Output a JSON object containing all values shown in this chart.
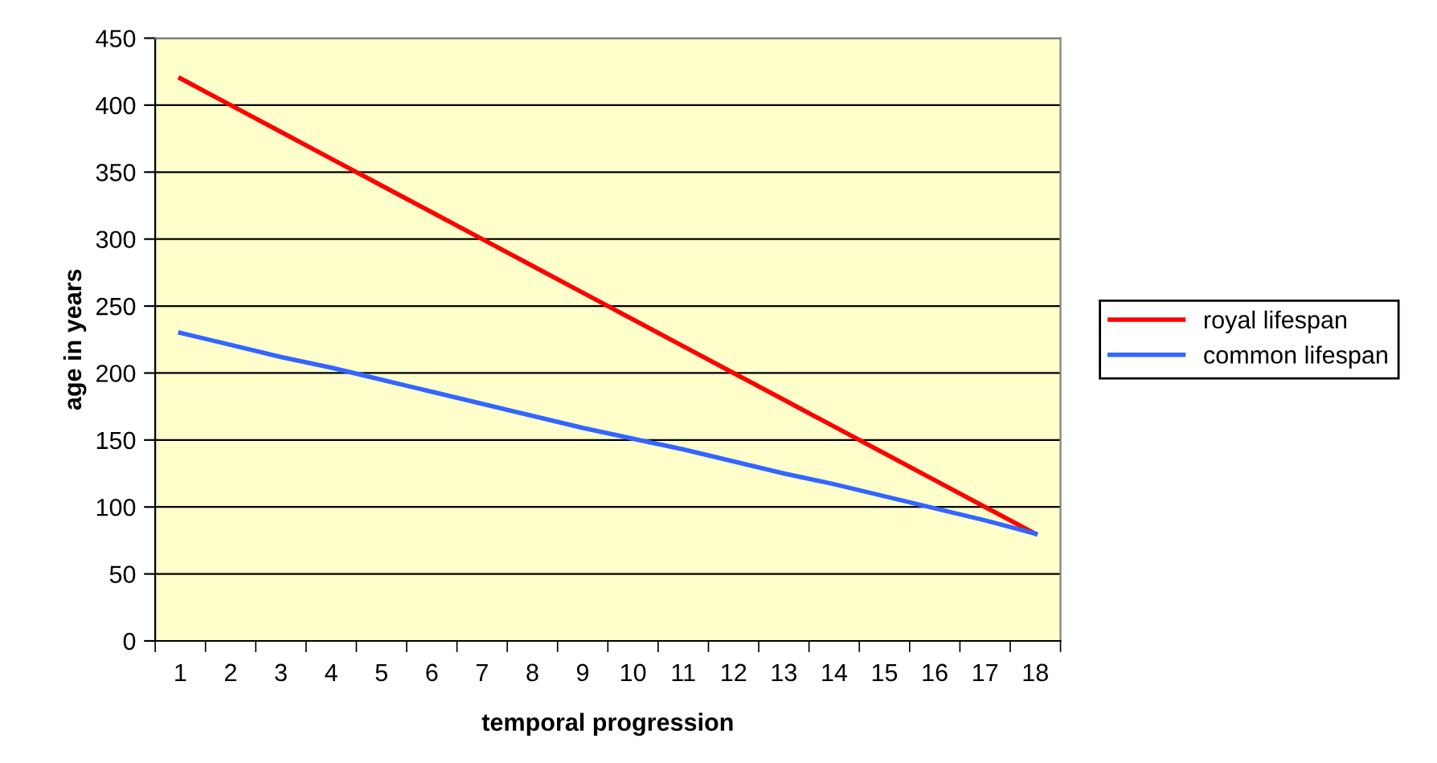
{
  "chart_data": {
    "type": "line",
    "xlabel": "temporal progression",
    "ylabel": "age in years",
    "categories": [
      "1",
      "2",
      "3",
      "4",
      "5",
      "6",
      "7",
      "8",
      "9",
      "10",
      "11",
      "12",
      "13",
      "14",
      "15",
      "16",
      "17",
      "18"
    ],
    "series": [
      {
        "name": "royal lifespan",
        "color": "#ff0000",
        "values": [
          420,
          400,
          380,
          360,
          340,
          320,
          300,
          280,
          260,
          240,
          220,
          200,
          180,
          160,
          140,
          120,
          100,
          80
        ]
      },
      {
        "name": "common lifespan",
        "color": "#3366ff",
        "values": [
          230,
          221,
          212,
          204,
          195,
          186,
          177,
          168,
          159,
          151,
          143,
          134,
          125,
          117,
          108,
          99,
          90,
          80
        ]
      }
    ],
    "ylim": [
      0,
      450
    ],
    "yticks": [
      0,
      50,
      100,
      150,
      200,
      250,
      300,
      350,
      400,
      450
    ],
    "grid": "y",
    "legend": "right",
    "marker": "none"
  }
}
